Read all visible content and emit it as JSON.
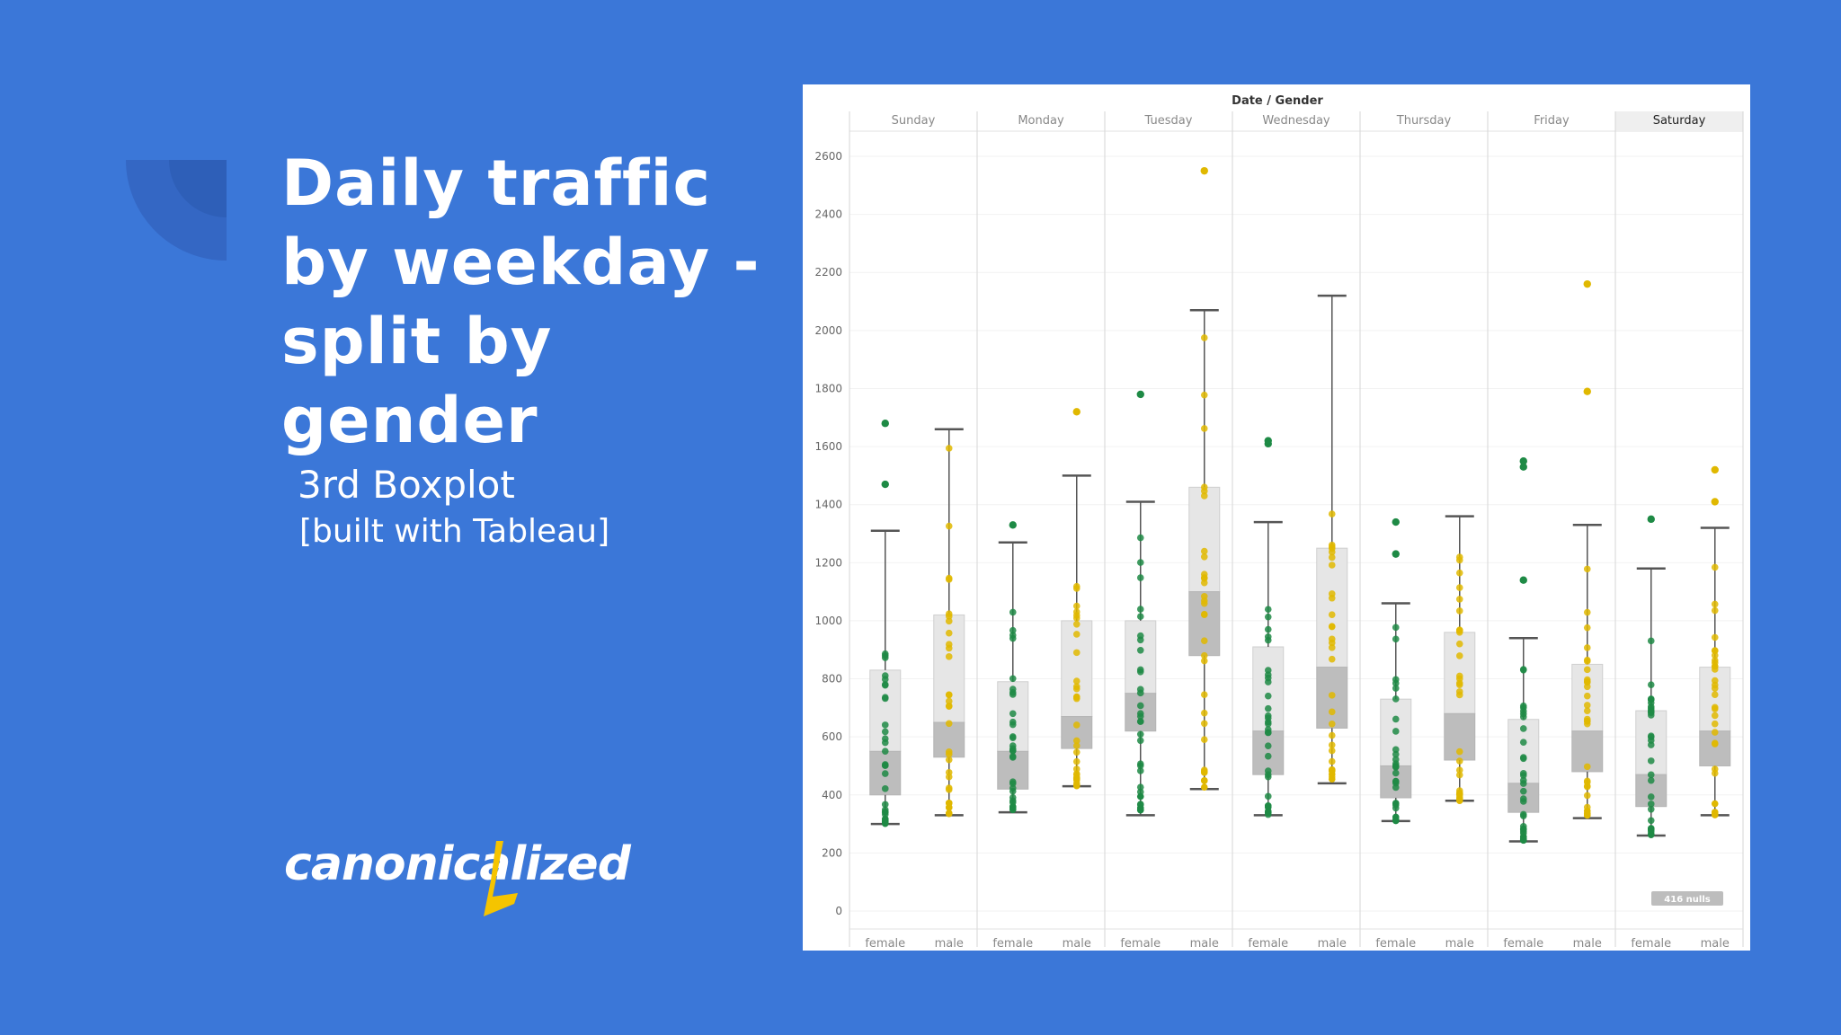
{
  "slide": {
    "title": "Daily traffic by weekday - split by gender",
    "subtitle_line1": "3rd Boxplot",
    "subtitle_line2": "[built with Tableau]",
    "logo_text": "canonicalized"
  },
  "colors": {
    "background": "#3b77d8",
    "female": "#1e8a45",
    "male": "#e0b800",
    "box": "#e6e6e6",
    "box_lower": "#bdbdbd",
    "logo_accent": "#f5c400"
  },
  "chart_data": {
    "type": "boxplot",
    "title": "Date / Gender",
    "y_ticks": [
      0,
      200,
      400,
      600,
      800,
      1000,
      1200,
      1400,
      1600,
      1800,
      2000,
      2200,
      2400,
      2600
    ],
    "ylim": [
      0,
      2650
    ],
    "days": [
      "Sunday",
      "Monday",
      "Tuesday",
      "Wednesday",
      "Thursday",
      "Friday",
      "Saturday"
    ],
    "genders": [
      "female",
      "male"
    ],
    "highlighted_day": "Saturday",
    "badge": "416 nulls",
    "boxes": [
      {
        "day": "Sunday",
        "gender": "female",
        "min": 300,
        "q1": 400,
        "median": 550,
        "q3": 830,
        "max": 1310,
        "outliers": [
          1470,
          1680
        ]
      },
      {
        "day": "Sunday",
        "gender": "male",
        "min": 330,
        "q1": 530,
        "median": 650,
        "q3": 1020,
        "max": 1660,
        "outliers": []
      },
      {
        "day": "Monday",
        "gender": "female",
        "min": 340,
        "q1": 420,
        "median": 550,
        "q3": 790,
        "max": 1270,
        "outliers": [
          1330
        ]
      },
      {
        "day": "Monday",
        "gender": "male",
        "min": 430,
        "q1": 560,
        "median": 670,
        "q3": 1000,
        "max": 1500,
        "outliers": [
          1720
        ]
      },
      {
        "day": "Tuesday",
        "gender": "female",
        "min": 330,
        "q1": 620,
        "median": 750,
        "q3": 1000,
        "max": 1410,
        "outliers": [
          1780
        ]
      },
      {
        "day": "Tuesday",
        "gender": "male",
        "min": 420,
        "q1": 880,
        "median": 1100,
        "q3": 1460,
        "max": 2070,
        "outliers": [
          2550
        ]
      },
      {
        "day": "Wednesday",
        "gender": "female",
        "min": 330,
        "q1": 470,
        "median": 620,
        "q3": 910,
        "max": 1340,
        "outliers": [
          1610,
          1620
        ]
      },
      {
        "day": "Wednesday",
        "gender": "male",
        "min": 440,
        "q1": 630,
        "median": 840,
        "q3": 1250,
        "max": 2120,
        "outliers": []
      },
      {
        "day": "Thursday",
        "gender": "female",
        "min": 310,
        "q1": 390,
        "median": 500,
        "q3": 730,
        "max": 1060,
        "outliers": [
          1230,
          1340
        ]
      },
      {
        "day": "Thursday",
        "gender": "male",
        "min": 380,
        "q1": 520,
        "median": 680,
        "q3": 960,
        "max": 1360,
        "outliers": []
      },
      {
        "day": "Friday",
        "gender": "female",
        "min": 240,
        "q1": 340,
        "median": 440,
        "q3": 660,
        "max": 940,
        "outliers": [
          1140,
          1530,
          1550
        ]
      },
      {
        "day": "Friday",
        "gender": "male",
        "min": 320,
        "q1": 480,
        "median": 620,
        "q3": 850,
        "max": 1330,
        "outliers": [
          1790,
          2160
        ]
      },
      {
        "day": "Saturday",
        "gender": "female",
        "min": 260,
        "q1": 360,
        "median": 470,
        "q3": 690,
        "max": 1180,
        "outliers": [
          1350
        ]
      },
      {
        "day": "Saturday",
        "gender": "male",
        "min": 330,
        "q1": 500,
        "median": 620,
        "q3": 840,
        "max": 1320,
        "outliers": [
          1410,
          1520
        ]
      }
    ]
  }
}
